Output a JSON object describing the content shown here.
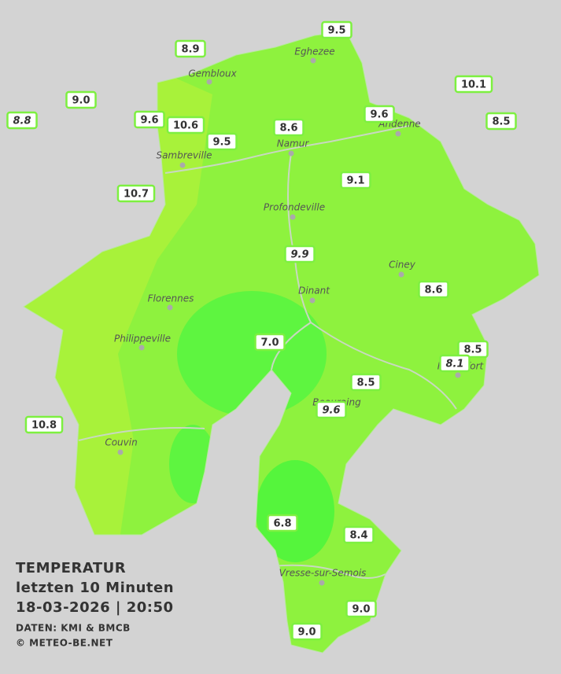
{
  "map": {
    "title": [
      "TEMPERATUR",
      "letzten 10 Minuten",
      "18-03-2026  |  20:50"
    ],
    "credits": [
      "DATEN: KMI & BMCB",
      "© METEO-BE.NET"
    ],
    "towns": [
      "Eghezee",
      "Gembloux",
      "Andenne",
      "Namur",
      "Sambreville",
      "Profondeville",
      "Ciney",
      "Dinant",
      "Florennes",
      "Philippeville",
      "Rochefort",
      "Beauraing",
      "Couvin",
      "Vresse-sur-Semois"
    ],
    "stations": [
      "9.5",
      "8.9",
      "10.1",
      "9.0",
      "8.8",
      "9.6",
      "10.6",
      "8.6",
      "9.6",
      "8.5",
      "9.5",
      "10.7",
      "9.1",
      "9.9",
      "8.6",
      "7.0",
      "8.5",
      "8.1",
      "8.5",
      "9.6",
      "10.8",
      "6.8",
      "8.4",
      "9.0",
      "9.0"
    ]
  }
}
